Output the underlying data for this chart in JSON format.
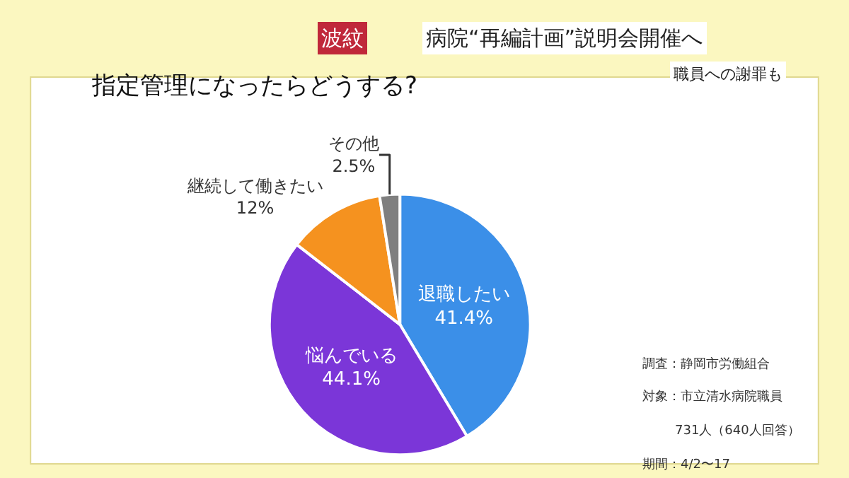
{
  "chart_data": {
    "type": "pie",
    "title": "指定管理になったらどうする?",
    "categories": [
      "退職したい",
      "悩んでいる",
      "継続して働きたい",
      "その他"
    ],
    "values": [
      41.4,
      44.1,
      12,
      2.5
    ],
    "colors": [
      "#3b8fe8",
      "#7b36d8",
      "#f5921f",
      "#7f7f7f"
    ],
    "value_labels": [
      "41.4%",
      "44.1%",
      "12%",
      "2.5%"
    ],
    "data_labels": true,
    "legend": false,
    "annotations": [
      "波紋",
      "病院“再編計画”説明会開催へ",
      "職員への謝罪も",
      "調査：静岡市労働組合",
      "対象：市立清水病院職員",
      "731人（640人回答）",
      "期間：4/2〜17"
    ]
  }
}
